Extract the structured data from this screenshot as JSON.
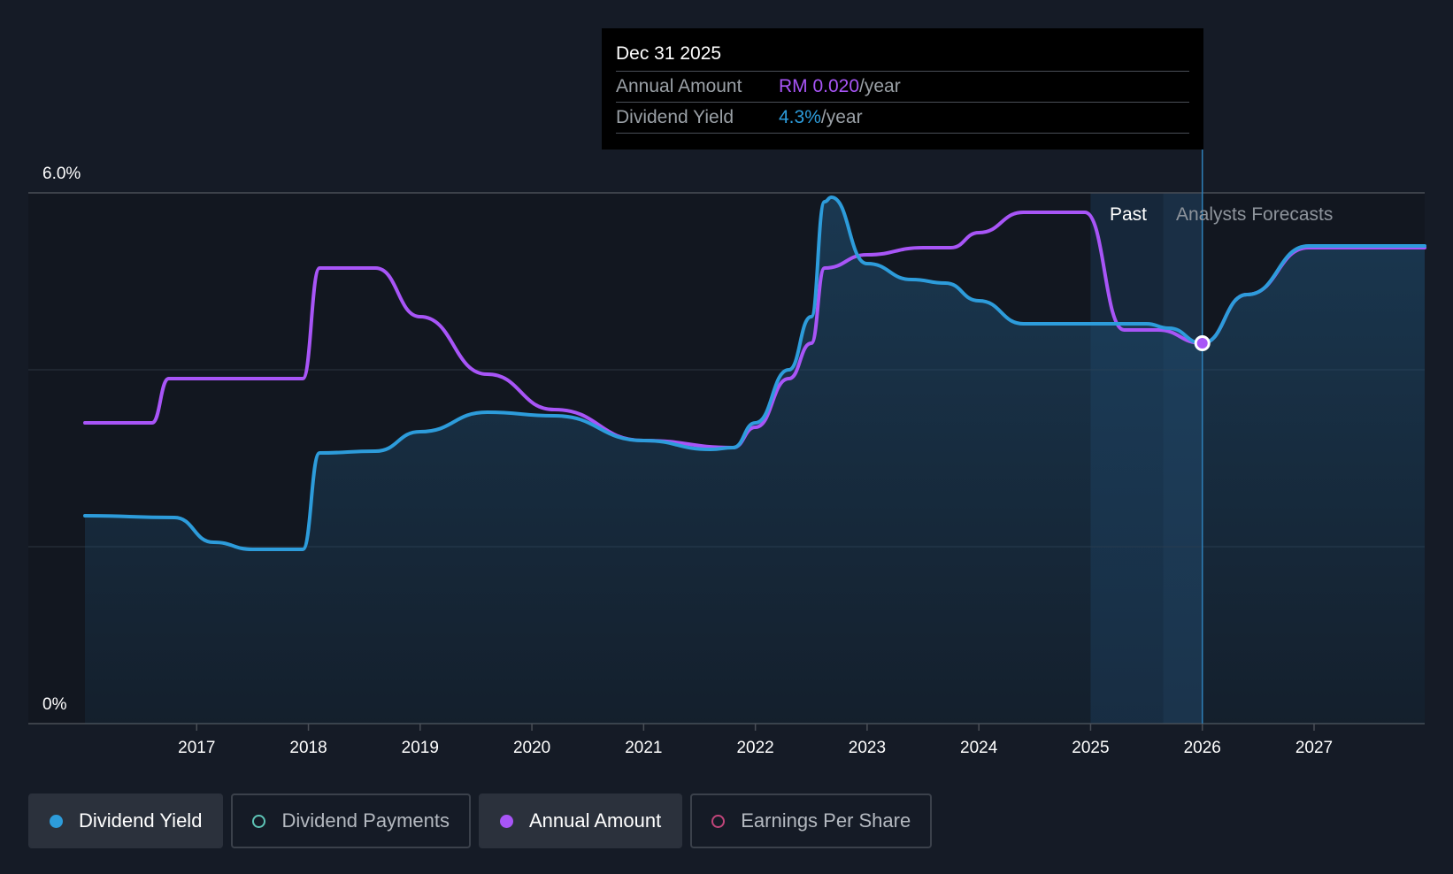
{
  "tooltip": {
    "date": "Dec 31 2025",
    "rows": [
      {
        "label": "Annual Amount",
        "value": "RM 0.020",
        "unit": "/year",
        "color": "#a855f7"
      },
      {
        "label": "Dividend Yield",
        "value": "4.3%",
        "unit": "/year",
        "color": "#2d9cdb"
      }
    ]
  },
  "regions": {
    "past": "Past",
    "forecast": "Analysts Forecasts"
  },
  "legend": [
    {
      "label": "Dividend Yield",
      "color": "#2d9cdb",
      "active": true,
      "icon": "filled-dot-icon"
    },
    {
      "label": "Dividend Payments",
      "color": "#5ec4b6",
      "active": false,
      "icon": "hollow-dot-icon"
    },
    {
      "label": "Annual Amount",
      "color": "#a855f7",
      "active": true,
      "icon": "filled-dot-icon"
    },
    {
      "label": "Earnings Per Share",
      "color": "#c0457a",
      "active": false,
      "icon": "hollow-dot-icon"
    }
  ],
  "chart_data": {
    "type": "line",
    "title": "",
    "xlabel": "",
    "ylabel": "",
    "ylim": [
      0,
      6.0
    ],
    "y_tick_labels": [
      "0%",
      "6.0%"
    ],
    "xlim": [
      2016.0,
      2027.99
    ],
    "x_tick_labels": [
      "2017",
      "2018",
      "2019",
      "2020",
      "2021",
      "2022",
      "2023",
      "2024",
      "2025",
      "2026",
      "2027"
    ],
    "past_end": 2025.0,
    "forecast_start": 2025.65,
    "tooltip_x": 2026.0,
    "series": [
      {
        "name": "Dividend Yield",
        "color": "#2d9cdb",
        "unit": "%",
        "x": [
          2016.0,
          2016.8,
          2017.15,
          2017.5,
          2017.95,
          2018.1,
          2018.6,
          2019.0,
          2019.6,
          2020.2,
          2021.0,
          2021.6,
          2021.8,
          2022.0,
          2022.3,
          2022.5,
          2022.62,
          2022.68,
          2023.0,
          2023.4,
          2023.7,
          2024.0,
          2024.4,
          2025.0,
          2025.5,
          2025.7,
          2026.0,
          2026.4,
          2026.95,
          2027.99
        ],
        "y": [
          2.35,
          2.33,
          2.05,
          1.97,
          1.97,
          3.06,
          3.08,
          3.3,
          3.52,
          3.48,
          3.2,
          3.1,
          3.12,
          3.4,
          4.0,
          4.6,
          5.9,
          5.95,
          5.2,
          5.02,
          4.98,
          4.78,
          4.52,
          4.52,
          4.52,
          4.47,
          4.3,
          4.85,
          5.4,
          5.4
        ]
      },
      {
        "name": "Annual Amount",
        "color": "#a855f7",
        "unit": "RM",
        "x": [
          2016.0,
          2016.6,
          2016.75,
          2017.0,
          2017.5,
          2017.95,
          2018.1,
          2018.6,
          2019.0,
          2019.6,
          2020.2,
          2021.0,
          2021.8,
          2022.0,
          2022.3,
          2022.5,
          2022.62,
          2023.0,
          2023.5,
          2023.75,
          2024.0,
          2024.4,
          2024.95,
          2025.3,
          2025.6,
          2026.0,
          2026.4,
          2026.95,
          2027.99
        ],
        "y": [
          3.4,
          3.4,
          3.9,
          3.9,
          3.9,
          3.9,
          5.15,
          5.15,
          4.6,
          3.95,
          3.55,
          3.2,
          3.12,
          3.35,
          3.9,
          4.3,
          5.15,
          5.3,
          5.38,
          5.38,
          5.55,
          5.78,
          5.78,
          4.45,
          4.45,
          4.3,
          4.85,
          5.38,
          5.38
        ]
      }
    ]
  }
}
